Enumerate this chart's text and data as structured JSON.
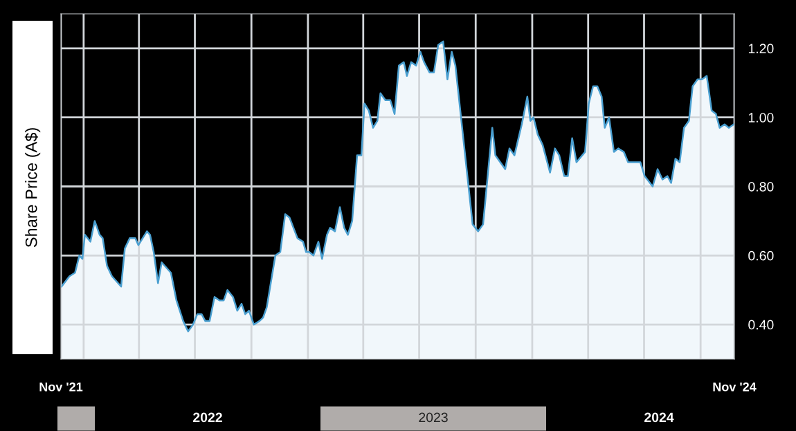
{
  "chart_data": {
    "type": "area",
    "ylabel": "Share Price (A$)",
    "annotations": [
      "2022",
      "2023",
      "2024"
    ],
    "x": [
      "2021-11-26",
      "2021-12-09",
      "2021-12-18",
      "2021-12-25",
      "2021-12-30",
      "2022-01-03",
      "2022-01-12",
      "2022-01-19",
      "2022-01-27",
      "2022-02-01",
      "2022-02-08",
      "2022-02-16",
      "2022-03-03",
      "2022-03-09",
      "2022-03-17",
      "2022-03-26",
      "2022-03-31",
      "2022-04-14",
      "2022-04-19",
      "2022-04-25",
      "2022-05-02",
      "2022-05-08",
      "2022-05-23",
      "2022-06-01",
      "2022-06-12",
      "2022-06-20",
      "2022-06-28",
      "2022-07-05",
      "2022-07-12",
      "2022-07-18",
      "2022-07-25",
      "2022-08-02",
      "2022-08-10",
      "2022-08-17",
      "2022-08-23",
      "2022-09-01",
      "2022-09-08",
      "2022-09-15",
      "2022-09-21",
      "2022-09-27",
      "2022-10-05",
      "2022-10-14",
      "2022-10-20",
      "2022-10-26",
      "2022-11-09",
      "2022-11-17",
      "2022-11-25",
      "2022-12-02",
      "2022-12-15",
      "2022-12-24",
      "2022-12-29",
      "2023-01-03",
      "2023-01-10",
      "2023-01-18",
      "2023-01-24",
      "2023-02-01",
      "2023-02-06",
      "2023-02-14",
      "2023-02-22",
      "2023-03-01",
      "2023-03-07",
      "2023-03-14",
      "2023-03-22",
      "2023-03-29",
      "2023-04-03",
      "2023-04-10",
      "2023-04-17",
      "2023-04-24",
      "2023-04-29",
      "2023-05-07",
      "2023-05-15",
      "2023-05-22",
      "2023-05-29",
      "2023-06-06",
      "2023-06-11",
      "2023-06-18",
      "2023-06-26",
      "2023-07-03",
      "2023-07-09",
      "2023-07-18",
      "2023-07-25",
      "2023-08-01",
      "2023-08-09",
      "2023-08-16",
      "2023-08-23",
      "2023-08-29",
      "2023-09-26",
      "2023-10-05",
      "2023-10-13",
      "2023-10-28",
      "2023-11-02",
      "2023-11-18",
      "2023-11-25",
      "2023-12-03",
      "2023-12-15",
      "2023-12-24",
      "2023-12-29",
      "2024-01-03",
      "2024-01-10",
      "2024-01-18",
      "2024-01-30",
      "2024-02-07",
      "2024-02-14",
      "2024-02-22",
      "2024-02-28",
      "2024-03-06",
      "2024-03-13",
      "2024-03-27",
      "2024-04-02",
      "2024-04-09",
      "2024-04-16",
      "2024-04-23",
      "2024-04-28",
      "2024-05-05",
      "2024-05-13",
      "2024-05-20",
      "2024-05-29",
      "2024-06-05",
      "2024-06-25",
      "2024-07-02",
      "2024-07-15",
      "2024-07-23",
      "2024-07-31",
      "2024-08-08",
      "2024-08-14",
      "2024-08-21",
      "2024-08-28",
      "2024-09-04",
      "2024-09-12",
      "2024-09-18",
      "2024-09-26",
      "2024-10-03",
      "2024-10-11",
      "2024-10-19",
      "2024-10-26",
      "2024-11-01",
      "2024-11-09",
      "2024-11-16",
      "2024-11-24"
    ],
    "series": [
      {
        "color": "#4a9fd0",
        "values": [
          0.51,
          0.54,
          0.55,
          0.6,
          0.59,
          0.66,
          0.64,
          0.7,
          0.66,
          0.65,
          0.57,
          0.54,
          0.51,
          0.62,
          0.65,
          0.65,
          0.63,
          0.67,
          0.66,
          0.61,
          0.52,
          0.58,
          0.55,
          0.47,
          0.41,
          0.38,
          0.4,
          0.43,
          0.43,
          0.41,
          0.41,
          0.48,
          0.47,
          0.47,
          0.5,
          0.48,
          0.44,
          0.46,
          0.43,
          0.44,
          0.4,
          0.41,
          0.42,
          0.45,
          0.6,
          0.61,
          0.72,
          0.71,
          0.65,
          0.64,
          0.61,
          0.61,
          0.6,
          0.64,
          0.59,
          0.66,
          0.68,
          0.67,
          0.74,
          0.68,
          0.66,
          0.7,
          0.89,
          0.89,
          1.04,
          1.02,
          0.97,
          0.99,
          1.07,
          1.05,
          1.05,
          1.01,
          1.15,
          1.16,
          1.12,
          1.16,
          1.15,
          1.19,
          1.16,
          1.13,
          1.13,
          1.21,
          1.22,
          1.11,
          1.19,
          1.15,
          0.69,
          0.67,
          0.69,
          0.97,
          0.89,
          0.85,
          0.91,
          0.89,
          0.98,
          1.06,
          0.99,
          1.0,
          0.95,
          0.92,
          0.84,
          0.91,
          0.89,
          0.83,
          0.83,
          0.94,
          0.87,
          0.9,
          1.04,
          1.09,
          1.09,
          1.06,
          0.97,
          1.0,
          0.9,
          0.91,
          0.9,
          0.87,
          0.87,
          0.83,
          0.8,
          0.85,
          0.82,
          0.83,
          0.81,
          0.88,
          0.87,
          0.97,
          0.99,
          1.09,
          1.11,
          1.11,
          1.12,
          1.02,
          1.01,
          0.97,
          0.98,
          0.97,
          0.98
        ]
      }
    ],
    "xlim": [
      "2021-11-25",
      "2024-11-25"
    ],
    "xticks": [
      {
        "value": "2021-11-25",
        "label": "Nov '21"
      },
      {
        "value": "2022-01-01",
        "label": null
      },
      {
        "value": "2022-04-01",
        "label": null
      },
      {
        "value": "2022-07-01",
        "label": null
      },
      {
        "value": "2022-10-01",
        "label": null
      },
      {
        "value": "2023-01-01",
        "label": null
      },
      {
        "value": "2023-04-01",
        "label": null
      },
      {
        "value": "2023-07-01",
        "label": null
      },
      {
        "value": "2023-10-01",
        "label": null
      },
      {
        "value": "2024-01-01",
        "label": null
      },
      {
        "value": "2024-04-01",
        "label": null
      },
      {
        "value": "2024-07-01",
        "label": null
      },
      {
        "value": "2024-10-01",
        "label": null
      },
      {
        "value": "2024-11-25",
        "label": "Nov '24"
      }
    ],
    "ylim": [
      0.3,
      1.3
    ],
    "yticks": [
      {
        "value": 0.4,
        "label": "0.40"
      },
      {
        "value": 0.6,
        "label": "0.60"
      },
      {
        "value": 0.8,
        "label": "0.80"
      },
      {
        "value": 1.0,
        "label": "1.00"
      },
      {
        "value": 1.2,
        "label": "1.20"
      }
    ],
    "grid": true
  }
}
